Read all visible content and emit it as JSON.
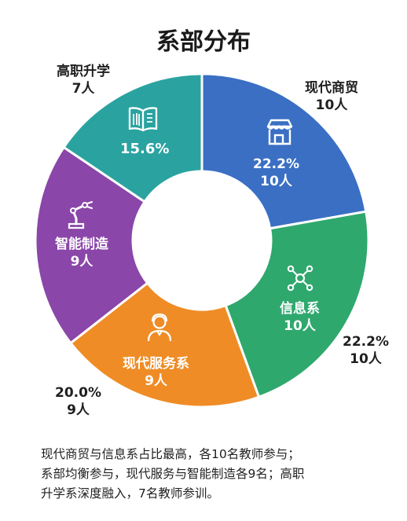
{
  "title": "系部分布",
  "chart_data": {
    "type": "pie",
    "variant": "donut",
    "title": "系部分布",
    "unit": "人",
    "categories": [
      "现代商贸",
      "信息系",
      "现代服务系",
      "智能制造",
      "高职升学"
    ],
    "values": [
      10,
      10,
      9,
      9,
      7
    ],
    "colors": [
      "#3a6fc4",
      "#2fa86e",
      "#ef8c26",
      "#8a46a8",
      "#2aa3a0"
    ],
    "slice_labels": [
      {
        "percent": "22.2%",
        "count": "10人"
      },
      {
        "name": "信息系",
        "count": "10人"
      },
      {
        "name": "现代服务系",
        "count": "9人"
      },
      {
        "name": "智能制造",
        "count": "9人"
      },
      {
        "percent": "15.6%"
      }
    ],
    "outside_labels": [
      {
        "line1": "现代商贸",
        "line2": "10人"
      },
      {
        "line1": "22.2%",
        "line2": "10人"
      },
      {
        "line1": "20.0%",
        "line2": "9人"
      },
      {
        "line1": "高职升学",
        "line2": "7人"
      }
    ],
    "icons": [
      "store-icon",
      "network-icon",
      "service-person-icon",
      "robot-arm-icon",
      "book-icon"
    ]
  },
  "caption": {
    "lines": [
      "现代商贸与信息系占比最高，各10名教师参与；",
      "系部均衡参与，现代服务与智能制造各9名；高职",
      "升学系深度融入，7名教师参训。"
    ]
  }
}
